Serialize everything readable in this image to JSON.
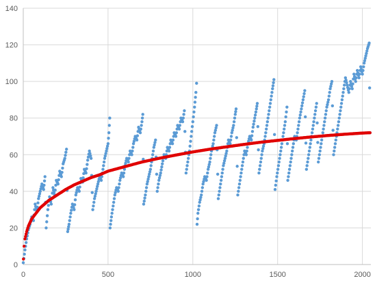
{
  "chart_data": {
    "type": "scatter",
    "title": "",
    "xlabel": "",
    "ylabel": "",
    "xlim": [
      0,
      2050
    ],
    "ylim": [
      0,
      140
    ],
    "x_ticks": [
      0,
      500,
      1000,
      1500,
      2000
    ],
    "y_ticks": [
      0,
      20,
      40,
      60,
      80,
      100,
      120,
      140
    ],
    "x_tick_labels": [
      "0",
      "500",
      "1000",
      "1500",
      "2000"
    ],
    "y_tick_labels": [
      "0",
      "20",
      "40",
      "60",
      "80",
      "100",
      "120",
      "140"
    ],
    "grid": true,
    "legend": "none",
    "series": [
      {
        "marker": "dot",
        "color": "#5B9BD5",
        "points": [
          [
            0,
            1
          ],
          [
            10,
            8
          ],
          [
            20,
            14
          ],
          [
            30,
            19
          ],
          [
            40,
            22
          ],
          [
            50,
            26
          ],
          [
            60,
            24
          ],
          [
            70,
            33
          ],
          [
            80,
            29
          ],
          [
            90,
            36
          ],
          [
            100,
            40
          ],
          [
            110,
            44
          ],
          [
            120,
            41
          ],
          [
            128,
            48
          ],
          [
            135,
            20
          ],
          [
            145,
            30
          ],
          [
            155,
            37
          ],
          [
            165,
            33
          ],
          [
            175,
            42
          ],
          [
            185,
            38
          ],
          [
            195,
            46
          ],
          [
            205,
            44
          ],
          [
            215,
            51
          ],
          [
            225,
            48
          ],
          [
            235,
            55
          ],
          [
            245,
            58
          ],
          [
            255,
            63
          ],
          [
            262,
            18
          ],
          [
            270,
            22
          ],
          [
            280,
            28
          ],
          [
            290,
            33
          ],
          [
            300,
            30
          ],
          [
            310,
            38
          ],
          [
            320,
            42
          ],
          [
            330,
            40
          ],
          [
            340,
            47
          ],
          [
            350,
            45
          ],
          [
            360,
            52
          ],
          [
            370,
            50
          ],
          [
            380,
            57
          ],
          [
            390,
            62
          ],
          [
            400,
            58
          ],
          [
            410,
            30
          ],
          [
            420,
            36
          ],
          [
            430,
            40
          ],
          [
            440,
            44
          ],
          [
            450,
            48
          ],
          [
            460,
            46
          ],
          [
            470,
            52
          ],
          [
            480,
            58
          ],
          [
            490,
            62
          ],
          [
            500,
            66
          ],
          [
            505,
            72
          ],
          [
            510,
            80
          ],
          [
            512,
            20
          ],
          [
            520,
            26
          ],
          [
            530,
            32
          ],
          [
            540,
            38
          ],
          [
            550,
            42
          ],
          [
            560,
            40
          ],
          [
            570,
            46
          ],
          [
            580,
            50
          ],
          [
            590,
            48
          ],
          [
            600,
            54
          ],
          [
            610,
            58
          ],
          [
            620,
            56
          ],
          [
            630,
            62
          ],
          [
            640,
            60
          ],
          [
            650,
            66
          ],
          [
            660,
            70
          ],
          [
            670,
            68
          ],
          [
            680,
            75
          ],
          [
            690,
            72
          ],
          [
            700,
            78
          ],
          [
            705,
            82
          ],
          [
            710,
            33
          ],
          [
            720,
            38
          ],
          [
            730,
            44
          ],
          [
            740,
            48
          ],
          [
            750,
            52
          ],
          [
            760,
            58
          ],
          [
            770,
            64
          ],
          [
            780,
            68
          ],
          [
            790,
            40
          ],
          [
            800,
            46
          ],
          [
            810,
            50
          ],
          [
            820,
            55
          ],
          [
            830,
            60
          ],
          [
            840,
            58
          ],
          [
            850,
            64
          ],
          [
            860,
            62
          ],
          [
            870,
            68
          ],
          [
            880,
            66
          ],
          [
            890,
            72
          ],
          [
            900,
            70
          ],
          [
            910,
            76
          ],
          [
            920,
            74
          ],
          [
            930,
            80
          ],
          [
            940,
            78
          ],
          [
            950,
            84
          ],
          [
            960,
            50
          ],
          [
            970,
            56
          ],
          [
            980,
            62
          ],
          [
            990,
            70
          ],
          [
            1000,
            78
          ],
          [
            1010,
            86
          ],
          [
            1018,
            94
          ],
          [
            1022,
            99
          ],
          [
            1025,
            22
          ],
          [
            1030,
            28
          ],
          [
            1040,
            34
          ],
          [
            1050,
            38
          ],
          [
            1060,
            44
          ],
          [
            1070,
            48
          ],
          [
            1080,
            46
          ],
          [
            1090,
            52
          ],
          [
            1100,
            56
          ],
          [
            1110,
            62
          ],
          [
            1120,
            66
          ],
          [
            1130,
            72
          ],
          [
            1140,
            76
          ],
          [
            1150,
            36
          ],
          [
            1160,
            42
          ],
          [
            1170,
            48
          ],
          [
            1180,
            54
          ],
          [
            1190,
            58
          ],
          [
            1200,
            62
          ],
          [
            1210,
            68
          ],
          [
            1220,
            66
          ],
          [
            1230,
            72
          ],
          [
            1240,
            76
          ],
          [
            1250,
            82
          ],
          [
            1255,
            85
          ],
          [
            1265,
            38
          ],
          [
            1275,
            44
          ],
          [
            1285,
            50
          ],
          [
            1295,
            56
          ],
          [
            1305,
            62
          ],
          [
            1315,
            60
          ],
          [
            1325,
            66
          ],
          [
            1335,
            70
          ],
          [
            1345,
            68
          ],
          [
            1355,
            75
          ],
          [
            1365,
            80
          ],
          [
            1375,
            85
          ],
          [
            1380,
            88
          ],
          [
            1390,
            50
          ],
          [
            1400,
            56
          ],
          [
            1410,
            62
          ],
          [
            1420,
            66
          ],
          [
            1430,
            72
          ],
          [
            1440,
            78
          ],
          [
            1450,
            84
          ],
          [
            1460,
            90
          ],
          [
            1470,
            96
          ],
          [
            1478,
            101
          ],
          [
            1485,
            41
          ],
          [
            1495,
            48
          ],
          [
            1505,
            54
          ],
          [
            1515,
            60
          ],
          [
            1525,
            66
          ],
          [
            1535,
            72
          ],
          [
            1545,
            78
          ],
          [
            1555,
            86
          ],
          [
            1560,
            46
          ],
          [
            1570,
            52
          ],
          [
            1580,
            58
          ],
          [
            1590,
            64
          ],
          [
            1600,
            70
          ],
          [
            1610,
            68
          ],
          [
            1620,
            74
          ],
          [
            1630,
            80
          ],
          [
            1640,
            85
          ],
          [
            1650,
            90
          ],
          [
            1660,
            95
          ],
          [
            1670,
            52
          ],
          [
            1680,
            58
          ],
          [
            1690,
            64
          ],
          [
            1700,
            70
          ],
          [
            1710,
            76
          ],
          [
            1720,
            82
          ],
          [
            1730,
            88
          ],
          [
            1740,
            56
          ],
          [
            1750,
            62
          ],
          [
            1760,
            68
          ],
          [
            1770,
            74
          ],
          [
            1780,
            80
          ],
          [
            1790,
            86
          ],
          [
            1800,
            90
          ],
          [
            1810,
            96
          ],
          [
            1820,
            100
          ],
          [
            1830,
            60
          ],
          [
            1840,
            66
          ],
          [
            1850,
            72
          ],
          [
            1860,
            78
          ],
          [
            1870,
            84
          ],
          [
            1880,
            90
          ],
          [
            1890,
            96
          ],
          [
            1900,
            102
          ],
          [
            1910,
            98
          ],
          [
            1920,
            94
          ],
          [
            1930,
            100
          ],
          [
            1940,
            96
          ],
          [
            1950,
            104
          ],
          [
            1960,
            100
          ],
          [
            1970,
            106
          ],
          [
            1980,
            102
          ],
          [
            1990,
            108
          ],
          [
            2000,
            104
          ],
          [
            2010,
            110
          ],
          [
            2020,
            114
          ],
          [
            2030,
            118
          ],
          [
            2040,
            121
          ],
          [
            2045,
            72
          ]
        ]
      },
      {
        "marker": "dot",
        "color": "#E00000",
        "points": [
          [
            1,
            3
          ],
          [
            5,
            10
          ],
          [
            10,
            14
          ],
          [
            20,
            18
          ],
          [
            30,
            21
          ],
          [
            40,
            23
          ],
          [
            50,
            25
          ],
          [
            75,
            28
          ],
          [
            100,
            31
          ],
          [
            150,
            35
          ],
          [
            200,
            38
          ],
          [
            250,
            41
          ],
          [
            300,
            43.5
          ],
          [
            350,
            45.5
          ],
          [
            400,
            47.5
          ],
          [
            450,
            49
          ],
          [
            500,
            51
          ],
          [
            600,
            53.5
          ],
          [
            700,
            56
          ],
          [
            800,
            58
          ],
          [
            900,
            59.8
          ],
          [
            1000,
            61.5
          ],
          [
            1100,
            63
          ],
          [
            1200,
            64.3
          ],
          [
            1300,
            65.6
          ],
          [
            1400,
            66.8
          ],
          [
            1500,
            67.8
          ],
          [
            1600,
            68.8
          ],
          [
            1700,
            69.7
          ],
          [
            1800,
            70.5
          ],
          [
            1900,
            71.2
          ],
          [
            2000,
            71.8
          ],
          [
            2045,
            72
          ]
        ]
      }
    ]
  }
}
